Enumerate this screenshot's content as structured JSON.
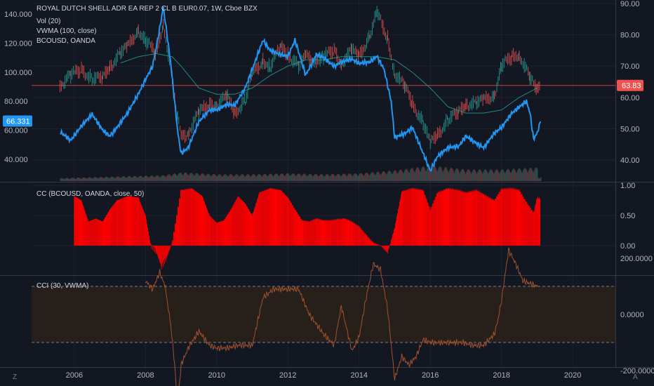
{
  "chart_data": [
    {
      "type": "line",
      "title": "ROYAL DUTCH SHELL ADR EA REP 2 CL B EUR0.07, 1W, Cboe BZX",
      "indicators": [
        "Vol (20)",
        "VWMA (100, close)",
        "BCOUSD, OANDA"
      ],
      "x_range": [
        2004.8,
        2021.2
      ],
      "x_ticks": [
        "2006",
        "2008",
        "2010",
        "2012",
        "2014",
        "2016",
        "2018",
        "2020"
      ],
      "left_axis": {
        "ticks": [
          "140.000",
          "120.000",
          "100.000",
          "80.000",
          "60.000",
          "40.000"
        ],
        "range": [
          20,
          150
        ]
      },
      "right_axis": {
        "ticks": [
          "90.00",
          "80.00",
          "70.00",
          "60.00",
          "50.00",
          "40.00"
        ],
        "range": [
          32.5,
          90
        ]
      },
      "last_price_tag": "63.83",
      "overlay_tag": "66.331",
      "series": [
        {
          "name": "ROYAL DUTCH SHELL ADR EA REP 2 CL B EUR0.07",
          "axis": "right",
          "color": "#ef5350",
          "x": [
            2005.6,
            2005.9,
            2006.2,
            2006.5,
            2006.8,
            2007.0,
            2007.3,
            2007.5,
            2007.8,
            2008.0,
            2008.3,
            2008.5,
            2008.75,
            2008.9,
            2009.0,
            2009.2,
            2009.5,
            2009.8,
            2010.0,
            2010.3,
            2010.5,
            2010.8,
            2011.0,
            2011.3,
            2011.5,
            2011.8,
            2012.0,
            2012.3,
            2012.5,
            2012.8,
            2013.0,
            2013.3,
            2013.5,
            2013.8,
            2014.0,
            2014.3,
            2014.5,
            2014.8,
            2015.0,
            2015.3,
            2015.5,
            2015.8,
            2016.0,
            2016.2,
            2016.5,
            2016.8,
            2017.0,
            2017.3,
            2017.5,
            2017.8,
            2018.0,
            2018.3,
            2018.5,
            2018.8,
            2019.0,
            2019.1
          ],
          "y": [
            64,
            67,
            69,
            66,
            66,
            70,
            74,
            76,
            82,
            78,
            74,
            84,
            66,
            54,
            47,
            49,
            55,
            58,
            58,
            60,
            55,
            59,
            67,
            72,
            70,
            76,
            74,
            70,
            73,
            72,
            73,
            75,
            71,
            75,
            73,
            80,
            87,
            79,
            68,
            63,
            58,
            52,
            45,
            48,
            53,
            55,
            58,
            58,
            59,
            61,
            70,
            73,
            74,
            66,
            62,
            64
          ]
        },
        {
          "name": "VWMA (100, close)",
          "axis": "right",
          "color": "#26a69a",
          "x": [
            2007.3,
            2007.8,
            2008.3,
            2008.75,
            2009.0,
            2009.5,
            2010.0,
            2010.5,
            2011.0,
            2011.5,
            2012.0,
            2012.5,
            2013.0,
            2013.5,
            2014.0,
            2014.5,
            2015.0,
            2015.5,
            2016.0,
            2016.5,
            2017.0,
            2017.5,
            2018.0,
            2018.5,
            2019.0
          ],
          "y": [
            71,
            73,
            74,
            73,
            70,
            63,
            61,
            61,
            63,
            67,
            70,
            72,
            72,
            73,
            73,
            73,
            72,
            68,
            63,
            57,
            55,
            55,
            56,
            60,
            63
          ]
        },
        {
          "name": "BCOUSD, OANDA",
          "axis": "left",
          "color": "#2196f3",
          "x": [
            2005.6,
            2005.9,
            2006.2,
            2006.5,
            2006.8,
            2007.0,
            2007.2,
            2007.5,
            2007.8,
            2008.0,
            2008.2,
            2008.4,
            2008.5,
            2008.7,
            2008.9,
            2009.0,
            2009.2,
            2009.5,
            2009.8,
            2010.0,
            2010.3,
            2010.5,
            2010.8,
            2011.0,
            2011.3,
            2011.5,
            2011.8,
            2012.0,
            2012.2,
            2012.5,
            2012.8,
            2013.0,
            2013.3,
            2013.5,
            2013.8,
            2014.0,
            2014.3,
            2014.5,
            2014.7,
            2014.9,
            2015.0,
            2015.3,
            2015.5,
            2015.7,
            2015.9,
            2016.0,
            2016.2,
            2016.5,
            2016.8,
            2017.0,
            2017.3,
            2017.5,
            2017.8,
            2018.0,
            2018.3,
            2018.5,
            2018.7,
            2018.8,
            2018.9,
            2019.0,
            2019.1
          ],
          "y": [
            59,
            53,
            63,
            71,
            60,
            56,
            62,
            72,
            85,
            95,
            104,
            130,
            145,
            108,
            60,
            44,
            48,
            66,
            74,
            74,
            78,
            77,
            89,
            102,
            122,
            115,
            112,
            111,
            122,
            98,
            112,
            110,
            104,
            107,
            109,
            106,
            107,
            111,
            102,
            80,
            55,
            58,
            62,
            50,
            38,
            32,
            42,
            48,
            49,
            56,
            51,
            48,
            58,
            62,
            72,
            76,
            80,
            72,
            54,
            58,
            66
          ]
        }
      ]
    },
    {
      "type": "bar",
      "title": "Vol (20)",
      "description_values_relative": true,
      "x": [
        2005.6,
        2006.5,
        2007.5,
        2008.5,
        2009.0,
        2010.0,
        2011.0,
        2012.0,
        2013.0,
        2014.0,
        2015.0,
        2016.0,
        2017.0,
        2018.0,
        2019.0
      ],
      "values": [
        0.15,
        0.2,
        0.25,
        0.3,
        0.45,
        0.35,
        0.35,
        0.4,
        0.35,
        0.4,
        0.55,
        0.8,
        0.6,
        0.6,
        0.7
      ]
    },
    {
      "type": "bar",
      "title": "CC (BCOUSD, OANDA, close, 50)",
      "color": "#ff0000",
      "y_ticks": [
        "1.00",
        "0.50",
        "0.00"
      ],
      "ylim": [
        -0.4,
        1.02
      ],
      "x": [
        2006.0,
        2006.2,
        2006.4,
        2006.6,
        2006.8,
        2007.0,
        2007.2,
        2007.5,
        2007.8,
        2008.0,
        2008.15,
        2008.3,
        2008.45,
        2008.6,
        2008.75,
        2009.0,
        2009.3,
        2009.6,
        2009.8,
        2010.0,
        2010.2,
        2010.4,
        2010.6,
        2010.8,
        2011.0,
        2011.2,
        2011.5,
        2011.8,
        2012.0,
        2012.2,
        2012.4,
        2012.6,
        2012.8,
        2013.0,
        2013.2,
        2013.4,
        2013.6,
        2013.8,
        2014.0,
        2014.2,
        2014.4,
        2014.6,
        2014.8,
        2015.0,
        2015.2,
        2015.5,
        2015.8,
        2016.0,
        2016.2,
        2016.5,
        2016.8,
        2017.0,
        2017.3,
        2017.5,
        2017.8,
        2018.0,
        2018.3,
        2018.5,
        2018.7,
        2018.9,
        2019.0,
        2019.1
      ],
      "values": [
        0.82,
        0.75,
        0.4,
        0.45,
        0.4,
        0.6,
        0.75,
        0.82,
        0.8,
        0.5,
        0.0,
        -0.1,
        -0.35,
        -0.2,
        0.05,
        0.92,
        0.95,
        0.82,
        0.5,
        0.38,
        0.42,
        0.6,
        0.82,
        0.7,
        0.5,
        0.88,
        0.95,
        0.92,
        0.8,
        0.6,
        0.42,
        0.4,
        0.45,
        0.42,
        0.42,
        0.44,
        0.45,
        0.4,
        0.32,
        0.18,
        0.05,
        0.0,
        -0.12,
        0.3,
        0.9,
        0.95,
        0.92,
        0.6,
        0.88,
        0.95,
        0.92,
        0.88,
        0.92,
        0.85,
        0.75,
        0.94,
        0.95,
        0.92,
        0.72,
        0.55,
        0.8,
        0.78
      ]
    },
    {
      "type": "line",
      "title": "CCI (30, VWMA)",
      "color": "#a0522d",
      "y_ticks": [
        "200.0000",
        "0.0000",
        "-200.0000"
      ],
      "ylim": [
        -350,
        270
      ],
      "bands": [
        100,
        -100
      ],
      "x": [
        2008.0,
        2008.2,
        2008.4,
        2008.55,
        2008.7,
        2008.8,
        2008.9,
        2009.0,
        2009.2,
        2009.5,
        2009.8,
        2010.0,
        2010.3,
        2010.6,
        2011.0,
        2011.3,
        2011.6,
        2012.0,
        2012.3,
        2012.6,
        2013.0,
        2013.3,
        2013.5,
        2013.8,
        2014.0,
        2014.2,
        2014.4,
        2014.6,
        2014.8,
        2015.0,
        2015.2,
        2015.4,
        2015.6,
        2015.8,
        2016.0,
        2016.3,
        2016.6,
        2016.9,
        2017.2,
        2017.5,
        2017.8,
        2017.9,
        2018.0,
        2018.2,
        2018.4,
        2018.6,
        2018.8,
        2019.0
      ],
      "y": [
        120,
        90,
        150,
        100,
        -30,
        -150,
        -320,
        -180,
        -120,
        -60,
        -110,
        -120,
        -120,
        -110,
        -110,
        60,
        90,
        90,
        90,
        0,
        -70,
        -110,
        30,
        -130,
        -80,
        60,
        180,
        160,
        20,
        -230,
        -150,
        -180,
        -150,
        -90,
        -100,
        -100,
        -100,
        -100,
        -110,
        -110,
        -70,
        -20,
        50,
        230,
        180,
        120,
        110,
        100
      ]
    }
  ]
}
